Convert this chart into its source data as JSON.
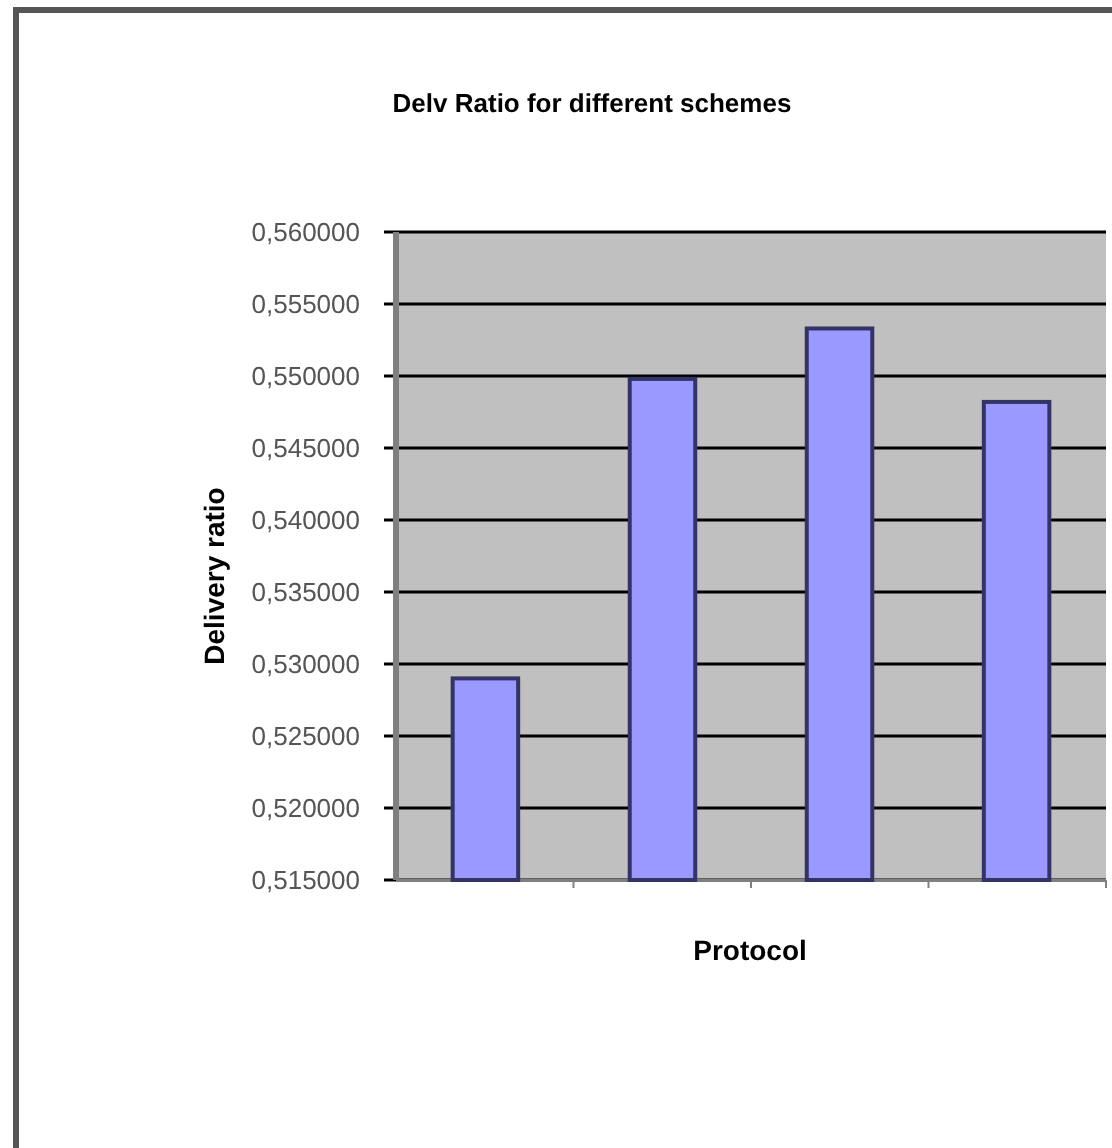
{
  "chart_data": {
    "type": "bar",
    "title": "Delv Ratio for different schemes",
    "xlabel": "Protocol",
    "ylabel": "Delivery ratio",
    "categories": [
      null,
      null,
      null,
      null
    ],
    "values": [
      0.529,
      0.5498,
      0.5533,
      0.5482
    ],
    "color": "#9999ff",
    "ylim": [
      0.515,
      0.56
    ],
    "yticks": [
      {
        "value": 0.515,
        "label": "0,515000"
      },
      {
        "value": 0.52,
        "label": "0,520000"
      },
      {
        "value": 0.525,
        "label": "0,525000"
      },
      {
        "value": 0.53,
        "label": "0,530000"
      },
      {
        "value": 0.535,
        "label": "0,535000"
      },
      {
        "value": 0.54,
        "label": "0,540000"
      },
      {
        "value": 0.545,
        "label": "0,545000"
      },
      {
        "value": 0.55,
        "label": "0,550000"
      },
      {
        "value": 0.555,
        "label": "0,555000"
      },
      {
        "value": 0.56,
        "label": "0,560000"
      }
    ],
    "grid": "y"
  }
}
